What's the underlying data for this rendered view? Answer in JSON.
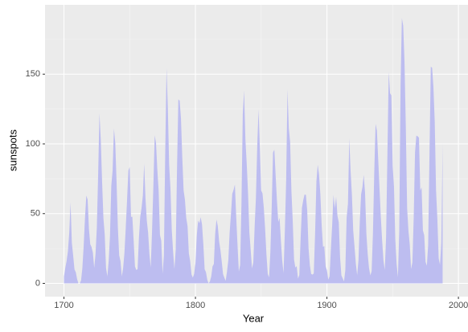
{
  "chart_data": {
    "type": "area",
    "xlabel": "Year",
    "ylabel": "sunspots",
    "color": "#bdbdf0",
    "grid": true,
    "x": [
      1700,
      1701,
      1702,
      1703,
      1704,
      1705,
      1706,
      1707,
      1708,
      1709,
      1710,
      1711,
      1712,
      1713,
      1714,
      1715,
      1716,
      1717,
      1718,
      1719,
      1720,
      1721,
      1722,
      1723,
      1724,
      1725,
      1726,
      1727,
      1728,
      1729,
      1730,
      1731,
      1732,
      1733,
      1734,
      1735,
      1736,
      1737,
      1738,
      1739,
      1740,
      1741,
      1742,
      1743,
      1744,
      1745,
      1746,
      1747,
      1748,
      1749,
      1750,
      1751,
      1752,
      1753,
      1754,
      1755,
      1756,
      1757,
      1758,
      1759,
      1760,
      1761,
      1762,
      1763,
      1764,
      1765,
      1766,
      1767,
      1768,
      1769,
      1770,
      1771,
      1772,
      1773,
      1774,
      1775,
      1776,
      1777,
      1778,
      1779,
      1780,
      1781,
      1782,
      1783,
      1784,
      1785,
      1786,
      1787,
      1788,
      1789,
      1790,
      1791,
      1792,
      1793,
      1794,
      1795,
      1796,
      1797,
      1798,
      1799,
      1800,
      1801,
      1802,
      1803,
      1804,
      1805,
      1806,
      1807,
      1808,
      1809,
      1810,
      1811,
      1812,
      1813,
      1814,
      1815,
      1816,
      1817,
      1818,
      1819,
      1820,
      1821,
      1822,
      1823,
      1824,
      1825,
      1826,
      1827,
      1828,
      1829,
      1830,
      1831,
      1832,
      1833,
      1834,
      1835,
      1836,
      1837,
      1838,
      1839,
      1840,
      1841,
      1842,
      1843,
      1844,
      1845,
      1846,
      1847,
      1848,
      1849,
      1850,
      1851,
      1852,
      1853,
      1854,
      1855,
      1856,
      1857,
      1858,
      1859,
      1860,
      1861,
      1862,
      1863,
      1864,
      1865,
      1866,
      1867,
      1868,
      1869,
      1870,
      1871,
      1872,
      1873,
      1874,
      1875,
      1876,
      1877,
      1878,
      1879,
      1880,
      1881,
      1882,
      1883,
      1884,
      1885,
      1886,
      1887,
      1888,
      1889,
      1890,
      1891,
      1892,
      1893,
      1894,
      1895,
      1896,
      1897,
      1898,
      1899,
      1900,
      1901,
      1902,
      1903,
      1904,
      1905,
      1906,
      1907,
      1908,
      1909,
      1910,
      1911,
      1912,
      1913,
      1914,
      1915,
      1916,
      1917,
      1918,
      1919,
      1920,
      1921,
      1922,
      1923,
      1924,
      1925,
      1926,
      1927,
      1928,
      1929,
      1930,
      1931,
      1932,
      1933,
      1934,
      1935,
      1936,
      1937,
      1938,
      1939,
      1940,
      1941,
      1942,
      1943,
      1944,
      1945,
      1946,
      1947,
      1948,
      1949,
      1950,
      1951,
      1952,
      1953,
      1954,
      1955,
      1956,
      1957,
      1958,
      1959,
      1960,
      1961,
      1962,
      1963,
      1964,
      1965,
      1966,
      1967,
      1968,
      1969,
      1970,
      1971,
      1972,
      1973,
      1974,
      1975,
      1976,
      1977,
      1978,
      1979,
      1980,
      1981,
      1982,
      1983,
      1984,
      1985,
      1986,
      1987,
      1988
    ],
    "values": [
      5,
      11,
      16,
      23,
      36,
      58,
      29,
      20,
      10,
      8,
      3,
      0,
      0,
      2,
      11,
      27,
      47,
      63,
      60,
      39,
      28,
      26,
      22,
      11,
      21,
      40,
      78,
      122,
      103,
      73,
      47,
      35,
      11,
      5,
      16,
      34,
      70,
      81,
      111,
      101,
      73,
      40,
      20,
      16,
      5,
      11,
      22,
      40,
      60,
      80.9,
      83.4,
      47.7,
      47.8,
      30.7,
      12.2,
      9.6,
      10.2,
      32.4,
      47.6,
      54.0,
      62.9,
      85.9,
      61.2,
      45.1,
      36.4,
      20.9,
      11.4,
      37.8,
      69.8,
      106.1,
      100.8,
      81.6,
      66.5,
      34.8,
      30.6,
      7.0,
      19.8,
      92.5,
      154.4,
      125.9,
      84.8,
      68.1,
      38.5,
      22.8,
      10.2,
      24.1,
      82.9,
      132.0,
      130.9,
      118.1,
      89.9,
      66.6,
      60.0,
      46.9,
      41.0,
      21.3,
      16.0,
      6.4,
      4.1,
      6.8,
      14.5,
      34.0,
      45.0,
      43.1,
      47.5,
      42.2,
      28.1,
      10.1,
      8.1,
      2.5,
      0.0,
      1.4,
      5.0,
      12.2,
      13.9,
      35.4,
      45.8,
      41.1,
      30.1,
      23.9,
      15.6,
      6.6,
      4.0,
      1.8,
      8.5,
      16.6,
      36.3,
      49.6,
      64.2,
      67.0,
      70.9,
      47.8,
      27.5,
      8.5,
      13.2,
      56.9,
      121.5,
      138.3,
      103.2,
      85.7,
      64.6,
      36.7,
      24.2,
      10.7,
      15.0,
      40.1,
      61.5,
      98.5,
      124.7,
      96.3,
      66.6,
      64.5,
      54.1,
      39.0,
      20.6,
      6.7,
      4.3,
      22.7,
      54.8,
      93.8,
      95.8,
      77.2,
      59.1,
      44.0,
      47.0,
      30.5,
      16.3,
      7.3,
      37.6,
      74.0,
      139.0,
      111.2,
      101.6,
      66.2,
      44.7,
      17.0,
      11.3,
      12.4,
      3.4,
      6.0,
      32.3,
      54.3,
      59.7,
      63.7,
      63.5,
      52.2,
      25.4,
      13.1,
      6.8,
      6.3,
      7.1,
      35.6,
      73.0,
      85.1,
      78.0,
      64.0,
      41.8,
      26.2,
      26.7,
      12.1,
      9.5,
      2.7,
      5.0,
      24.4,
      42.0,
      63.5,
      53.8,
      62.0,
      48.5,
      43.9,
      18.6,
      5.7,
      3.6,
      1.4,
      9.6,
      47.4,
      57.1,
      103.9,
      80.6,
      63.6,
      37.6,
      26.1,
      14.2,
      5.8,
      16.7,
      44.3,
      63.9,
      69.0,
      77.8,
      64.9,
      35.7,
      21.2,
      11.1,
      5.7,
      8.7,
      36.1,
      79.7,
      114.4,
      109.6,
      88.8,
      67.8,
      47.5,
      30.6,
      16.3,
      9.6,
      33.2,
      92.6,
      151.6,
      136.3,
      134.7,
      83.9,
      69.4,
      31.5,
      13.9,
      4.4,
      38.0,
      141.7,
      190.2,
      184.8,
      159.0,
      112.3,
      53.9,
      37.6,
      27.9,
      10.2,
      15.1,
      47.0,
      93.8,
      105.9,
      105.5,
      104.5,
      66.6,
      68.9,
      38.0,
      34.5,
      15.5,
      12.6,
      27.5,
      92.5,
      155.4,
      154.6,
      140.5,
      115.9,
      66.6,
      45.9,
      17.9,
      13.4,
      29.2,
      100.2
    ],
    "xlim": [
      1685.6,
      2002.4
    ],
    "ylim": [
      -9.51,
      199.71
    ],
    "xticks": [
      1700,
      1800,
      1900,
      2000
    ],
    "yticks": [
      0,
      50,
      100,
      150
    ],
    "xminor": [
      1750,
      1850,
      1950
    ],
    "yminor": [
      25,
      75,
      125,
      175
    ]
  }
}
